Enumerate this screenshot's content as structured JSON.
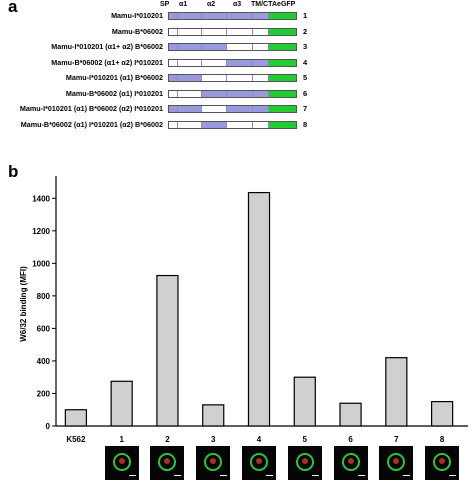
{
  "panel_a": {
    "letter": "a",
    "headers": {
      "sp": "SP",
      "a1": "α1",
      "a2": "α2",
      "a3": "α3",
      "tmct": "TM/CT",
      "gfp": "AeGFP"
    },
    "colors": {
      "mamu_i": "#9999dd",
      "mamu_b": "#ffffff",
      "gfp": "#22cc33"
    },
    "segments_order": [
      "sp",
      "a1",
      "a2",
      "a3",
      "tmct",
      "gfp"
    ],
    "rows": [
      {
        "label": "Mamu-I*010201",
        "num": "1",
        "segments": [
          "I",
          "I",
          "I",
          "I",
          "I",
          "G"
        ]
      },
      {
        "label": "Mamu-B*06002",
        "num": "2",
        "segments": [
          "B",
          "B",
          "B",
          "B",
          "B",
          "G"
        ]
      },
      {
        "label": "Mamu-I*010201 (α1+ α2) B*06002",
        "num": "3",
        "segments": [
          "I",
          "I",
          "I",
          "B",
          "B",
          "G"
        ]
      },
      {
        "label": "Mamu-B*06002 (α1+ α2) I*010201",
        "num": "4",
        "segments": [
          "B",
          "B",
          "B",
          "I",
          "I",
          "G"
        ]
      },
      {
        "label": "Mamu-I*010201 (α1) B*06002",
        "num": "5",
        "segments": [
          "I",
          "I",
          "B",
          "B",
          "B",
          "G"
        ]
      },
      {
        "label": "Mamu-B*06002 (α1) I*010201",
        "num": "6",
        "segments": [
          "B",
          "B",
          "I",
          "I",
          "I",
          "G"
        ]
      },
      {
        "label": "Mamu-I*010201 (α1) B*06002 (α2) I*010201",
        "num": "7",
        "segments": [
          "I",
          "I",
          "B",
          "I",
          "I",
          "G"
        ]
      },
      {
        "label": "Mamu-B*06002 (α1) I*010201 (α2) B*06002",
        "num": "8",
        "segments": [
          "B",
          "B",
          "I",
          "B",
          "B",
          "G"
        ]
      }
    ]
  },
  "panel_b": {
    "letter": "b"
  },
  "chart_data": {
    "type": "bar",
    "categories": [
      "K562",
      "1",
      "2",
      "3",
      "4",
      "5",
      "6",
      "7",
      "8"
    ],
    "values": [
      100,
      275,
      925,
      130,
      1435,
      300,
      140,
      420,
      150
    ],
    "ylabel": "W6/32 binding (MFI)",
    "xlabel": "",
    "ylim": [
      0,
      1500
    ],
    "yticks": [
      0,
      200,
      400,
      600,
      800,
      1000,
      1200,
      1400
    ],
    "bar_color": "#d0d0d0",
    "grid": false
  },
  "thumbnails": [
    "1",
    "2",
    "3",
    "4",
    "5",
    "6",
    "7",
    "8"
  ]
}
